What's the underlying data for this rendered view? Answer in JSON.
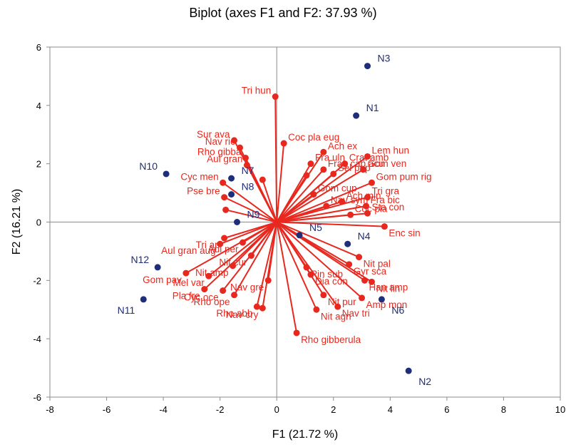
{
  "chart_data": {
    "type": "scatter",
    "title": "Biplot (axes F1 and F2: 37.93 %)",
    "xlabel": "F1 (21.72 %)",
    "ylabel": "F2 (16.21 %)",
    "xlim": [
      -8,
      10
    ],
    "ylim": [
      -6,
      6
    ],
    "xticks": [
      -8,
      -6,
      -4,
      -2,
      0,
      2,
      4,
      6,
      8,
      10
    ],
    "yticks": [
      -6,
      -4,
      -2,
      0,
      2,
      4,
      6
    ],
    "xtick_labels": [
      "-8",
      "-6",
      "-4",
      "-2",
      "0",
      "2",
      "4",
      "6",
      "8",
      "10"
    ],
    "ytick_labels": [
      "-6",
      "-4",
      "-2",
      "0",
      "2",
      "4",
      "6"
    ],
    "grid": false,
    "colors": {
      "variables": "#e8281f",
      "observations": "#1f2d7a"
    },
    "variables": [
      {
        "name": "Tri hun",
        "x": -0.05,
        "y": 4.3
      },
      {
        "name": "Sur ava",
        "x": -1.5,
        "y": 2.8
      },
      {
        "name": "Nav rie",
        "x": -1.3,
        "y": 2.55
      },
      {
        "name": "Rho gibba",
        "x": -1.1,
        "y": 2.2
      },
      {
        "name": "Aul gran",
        "x": -1.05,
        "y": 1.95
      },
      {
        "name": "",
        "x": -0.5,
        "y": 1.45
      },
      {
        "name": "Cyc men",
        "x": -1.9,
        "y": 1.35
      },
      {
        "name": "Pse bre",
        "x": -1.85,
        "y": 0.85
      },
      {
        "name": "",
        "x": -1.8,
        "y": 0.42
      },
      {
        "name": "Coc pla eug",
        "x": 0.25,
        "y": 2.7
      },
      {
        "name": "Ach ex",
        "x": 1.65,
        "y": 2.4
      },
      {
        "name": "Fra uln",
        "x": 1.2,
        "y": 2.0
      },
      {
        "name": "Lem hun",
        "x": 3.2,
        "y": 2.25
      },
      {
        "name": "Crat amb",
        "x": 2.4,
        "y": 2.0
      },
      {
        "name": "Gom ven",
        "x": 3.05,
        "y": 1.8
      },
      {
        "name": "Frag cap acu",
        "x": 1.65,
        "y": 1.8
      },
      {
        "name": "Sel pup",
        "x": 2.0,
        "y": 1.65
      },
      {
        "name": "",
        "x": 1.05,
        "y": 1.6
      },
      {
        "name": "Gom pum rig",
        "x": 3.35,
        "y": 1.35
      },
      {
        "name": "Tri gra",
        "x": 3.2,
        "y": 0.85
      },
      {
        "name": "Gom cup",
        "x": 1.3,
        "y": 0.95
      },
      {
        "name": "Ach min",
        "x": 2.3,
        "y": 0.7
      },
      {
        "name": "Nav sym",
        "x": 1.75,
        "y": 0.55
      },
      {
        "name": "Fra bic",
        "x": 3.15,
        "y": 0.55
      },
      {
        "name": "Sta con",
        "x": 3.2,
        "y": 0.3
      },
      {
        "name": "Coc pla",
        "x": 2.6,
        "y": 0.25
      },
      {
        "name": "Enc sin",
        "x": 3.8,
        "y": -0.15
      },
      {
        "name": "Tri ap",
        "x": -1.85,
        "y": -0.55
      },
      {
        "name": "Aul gran aug",
        "x": -2.0,
        "y": -0.75
      },
      {
        "name": "Aul per",
        "x": -1.2,
        "y": -0.7
      },
      {
        "name": "Nit amp",
        "x": -1.55,
        "y": -1.5
      },
      {
        "name": "Nit pal",
        "x": 2.9,
        "y": -1.2
      },
      {
        "name": "Gyr sca",
        "x": 2.55,
        "y": -1.45
      },
      {
        "name": "Pin sub",
        "x": 1.05,
        "y": -1.55
      },
      {
        "name": "Nit cur",
        "x": -0.9,
        "y": -1.15
      },
      {
        "name": "Gom pav",
        "x": -3.2,
        "y": -1.75
      },
      {
        "name": "Mel var",
        "x": -2.4,
        "y": -1.85
      },
      {
        "name": "Pla fre",
        "x": -2.55,
        "y": -2.3
      },
      {
        "name": "Cyc oce",
        "x": -1.9,
        "y": -2.35
      },
      {
        "name": "Rho ope",
        "x": -1.5,
        "y": -2.5
      },
      {
        "name": "Nav cry",
        "x": -0.5,
        "y": -2.95
      },
      {
        "name": "Rho abb",
        "x": -0.7,
        "y": -2.9
      },
      {
        "name": "Nav gre",
        "x": -0.3,
        "y": -2.0
      },
      {
        "name": "Dia con",
        "x": 1.2,
        "y": -1.8
      },
      {
        "name": "Nit pur",
        "x": 1.65,
        "y": -2.5
      },
      {
        "name": "Nit agn",
        "x": 1.4,
        "y": -3.0
      },
      {
        "name": "Nav tri",
        "x": 2.15,
        "y": -2.9
      },
      {
        "name": "Han amp",
        "x": 3.1,
        "y": -2.0
      },
      {
        "name": "Nit lin",
        "x": 3.35,
        "y": -2.05
      },
      {
        "name": "Amp mon",
        "x": 3.0,
        "y": -2.6
      },
      {
        "name": "Rho gibberula",
        "x": 0.7,
        "y": -3.8
      }
    ],
    "observations": [
      {
        "name": "N3",
        "x": 3.2,
        "y": 5.35
      },
      {
        "name": "N1",
        "x": 2.8,
        "y": 3.65
      },
      {
        "name": "N10",
        "x": -3.9,
        "y": 1.65
      },
      {
        "name": "N7",
        "x": -1.6,
        "y": 1.5
      },
      {
        "name": "N8",
        "x": -1.6,
        "y": 0.95
      },
      {
        "name": "N9",
        "x": -1.4,
        "y": 0.0
      },
      {
        "name": "N5",
        "x": 0.8,
        "y": -0.45
      },
      {
        "name": "N4",
        "x": 2.5,
        "y": -0.75
      },
      {
        "name": "N12",
        "x": -4.2,
        "y": -1.55
      },
      {
        "name": "N11",
        "x": -4.7,
        "y": -2.65
      },
      {
        "name": "N6",
        "x": 3.7,
        "y": -2.65
      },
      {
        "name": "N2",
        "x": 4.65,
        "y": -5.1
      }
    ]
  }
}
